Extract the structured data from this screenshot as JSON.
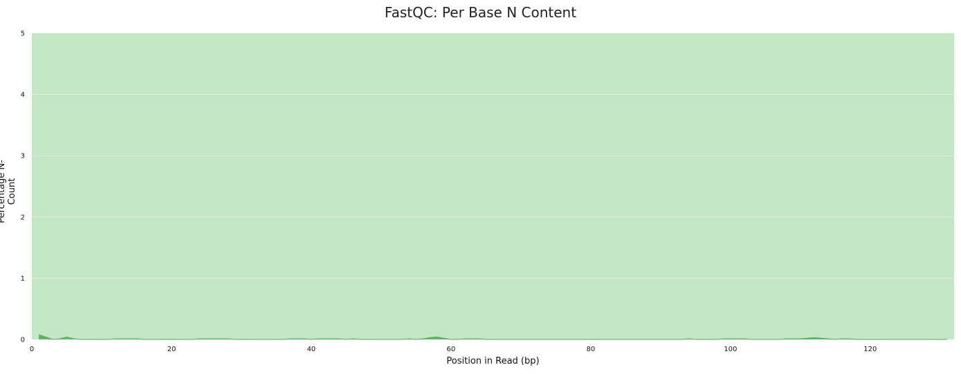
{
  "chart_data": {
    "type": "area",
    "title": "FastQC: Per Base N Content",
    "xlabel": "Position in Read (bp)",
    "ylabel": "Percentage N-Count",
    "xlim": [
      0,
      132
    ],
    "ylim": [
      0,
      5
    ],
    "x_ticks": [
      0,
      20,
      40,
      60,
      80,
      100,
      120
    ],
    "y_ticks": [
      0,
      1,
      2,
      3,
      4,
      5
    ],
    "grid": "horizontal",
    "legend": "none",
    "pass_zone": {
      "y_from": 0,
      "y_to": 5,
      "color": "#c5e6c5"
    },
    "series": [
      {
        "color": "#4caf50",
        "x": [
          1,
          2,
          3,
          4,
          5,
          6,
          7,
          8,
          9,
          10,
          11,
          12,
          13,
          14,
          15,
          16,
          17,
          18,
          19,
          20,
          21,
          22,
          23,
          24,
          25,
          26,
          27,
          28,
          29,
          30,
          31,
          32,
          33,
          34,
          35,
          36,
          37,
          38,
          39,
          40,
          41,
          42,
          43,
          44,
          45,
          46,
          47,
          48,
          49,
          50,
          51,
          52,
          53,
          54,
          55,
          56,
          57,
          58,
          59,
          60,
          61,
          62,
          63,
          64,
          65,
          66,
          67,
          68,
          69,
          70,
          71,
          72,
          73,
          74,
          75,
          76,
          77,
          78,
          79,
          80,
          81,
          82,
          83,
          84,
          85,
          86,
          87,
          88,
          89,
          90,
          91,
          92,
          93,
          94,
          95,
          96,
          97,
          98,
          99,
          100,
          101,
          102,
          103,
          104,
          105,
          106,
          107,
          108,
          109,
          110,
          111,
          112,
          113,
          114,
          115,
          116,
          117,
          118,
          119,
          120,
          121,
          122,
          123,
          124,
          125,
          126,
          127,
          128,
          129,
          130,
          131
        ],
        "values": [
          0.08,
          0.04,
          0.0,
          0.01,
          0.04,
          0.01,
          0.0,
          0.0,
          0.0,
          0.0,
          0.0,
          0.01,
          0.01,
          0.01,
          0.01,
          0.0,
          0.0,
          0.0,
          0.0,
          0.0,
          0.0,
          0.0,
          0.0,
          0.01,
          0.01,
          0.01,
          0.01,
          0.01,
          0.0,
          0.0,
          0.0,
          0.0,
          0.0,
          0.0,
          0.0,
          0.0,
          0.01,
          0.01,
          0.01,
          0.0,
          0.01,
          0.01,
          0.01,
          0.01,
          0.0,
          0.01,
          0.0,
          0.0,
          0.0,
          0.0,
          0.0,
          0.0,
          0.0,
          0.01,
          0.0,
          0.01,
          0.03,
          0.04,
          0.02,
          0.0,
          0.0,
          0.01,
          0.01,
          0.01,
          0.0,
          0.0,
          0.0,
          0.0,
          0.0,
          0.0,
          0.0,
          0.0,
          0.0,
          0.0,
          0.0,
          0.0,
          0.0,
          0.0,
          0.0,
          0.0,
          0.0,
          0.0,
          0.0,
          0.0,
          0.0,
          0.0,
          0.0,
          0.0,
          0.0,
          0.0,
          0.0,
          0.0,
          0.0,
          0.01,
          0.0,
          0.0,
          0.0,
          0.0,
          0.01,
          0.01,
          0.01,
          0.01,
          0.0,
          0.0,
          0.0,
          0.0,
          0.0,
          0.01,
          0.01,
          0.01,
          0.02,
          0.03,
          0.02,
          0.01,
          0.0,
          0.01,
          0.01,
          0.0,
          0.0,
          0.0,
          0.0,
          0.0,
          0.0,
          0.0,
          0.0,
          0.0,
          0.0,
          0.0,
          0.0,
          0.0,
          0.0
        ]
      }
    ]
  }
}
